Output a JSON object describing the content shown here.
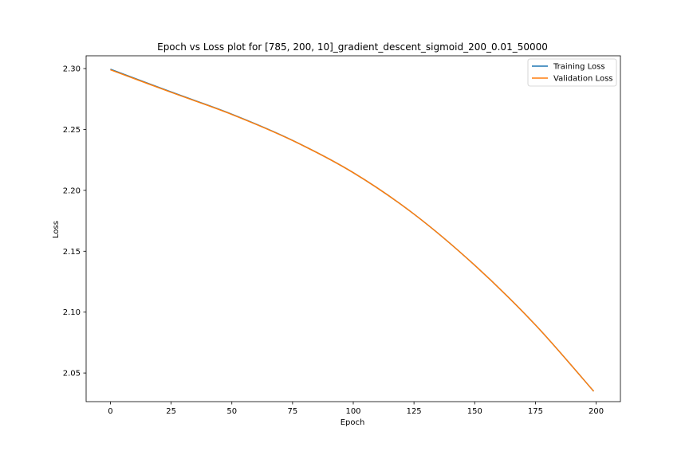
{
  "chart_data": {
    "type": "line",
    "title": "Epoch vs Loss plot for [785, 200, 10]_gradient_descent_sigmoid_200_0.01_50000",
    "xlabel": "Epoch",
    "ylabel": "Loss",
    "xlim": [
      -10,
      210
    ],
    "ylim": [
      2.0265,
      2.3105
    ],
    "xticks": [
      0,
      25,
      50,
      75,
      100,
      125,
      150,
      175,
      200
    ],
    "yticks": [
      2.05,
      2.1,
      2.15,
      2.2,
      2.25,
      2.3
    ],
    "ytick_labels": [
      "2.05",
      "2.10",
      "2.15",
      "2.20",
      "2.25",
      "2.30"
    ],
    "grid": false,
    "legend_position": "top-right",
    "series": [
      {
        "name": "Training Loss",
        "color": "#1f77b4",
        "x": [
          0,
          25,
          50,
          75,
          100,
          125,
          150,
          175,
          199
        ],
        "values": [
          2.2995,
          2.2808,
          2.2625,
          2.241,
          2.2145,
          2.1805,
          2.1385,
          2.0895,
          2.035
        ]
      },
      {
        "name": "Validation Loss",
        "color": "#ff7f0e",
        "x": [
          0,
          25,
          50,
          75,
          100,
          125,
          150,
          175,
          199
        ],
        "values": [
          2.299,
          2.2805,
          2.2623,
          2.2409,
          2.2145,
          2.1805,
          2.1385,
          2.0895,
          2.035
        ]
      }
    ]
  }
}
